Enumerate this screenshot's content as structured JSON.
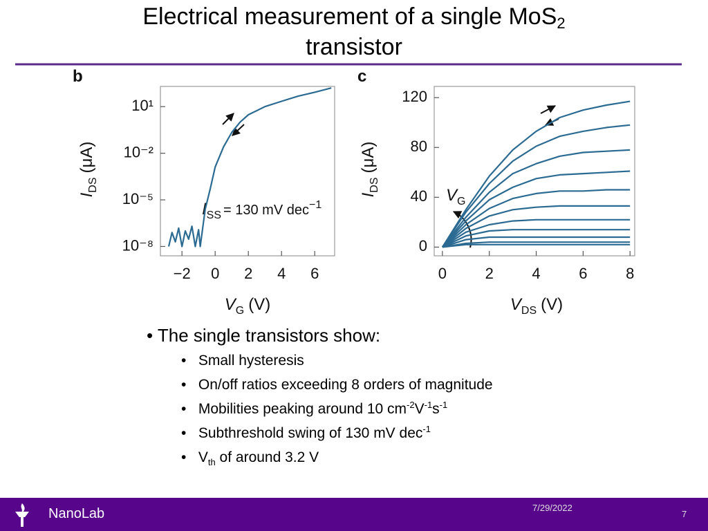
{
  "header": {
    "title": "Electrical measurement of a single MoS",
    "title_sub": "2",
    "title_line2": "transistor"
  },
  "chart_data": [
    {
      "type": "line",
      "panel_label": "b",
      "yscale": "log",
      "color": "#2b6a92",
      "y_label": {
        "main": "I",
        "sub": "DS",
        "unit": "(μA)"
      },
      "x_label": {
        "main": "V",
        "sub": "G",
        "unit": "(V)"
      },
      "annotation": {
        "main": "I",
        "sub": "SS",
        "text": "= 130 mV dec",
        "sup": "−1"
      },
      "xlim": [
        -3.3,
        7.2
      ],
      "xticks": [
        {
          "value": -2,
          "label": "−2"
        },
        0,
        2,
        4,
        6
      ],
      "ylim": [
        2.5e-09,
        200
      ],
      "yticks": [
        {
          "value": 10,
          "label": "10¹"
        },
        {
          "value": 0.01,
          "label": "10⁻²"
        },
        {
          "value": 1e-05,
          "label": "10⁻⁵"
        },
        {
          "value": 1e-08,
          "label": "10⁻⁸"
        }
      ],
      "x": [
        -2.8,
        -2.6,
        -2.4,
        -2.2,
        -2.0,
        -1.8,
        -1.6,
        -1.4,
        -1.2,
        -1.0,
        -0.9,
        -0.6,
        -0.3,
        0,
        0.5,
        1,
        1.5,
        2,
        3,
        4,
        5,
        6,
        7
      ],
      "series": [
        {
          "values": [
            1e-08,
            8e-08,
            2e-08,
            1.5e-07,
            1e-08,
            1e-07,
            3e-08,
            2e-07,
            1e-08,
            1.2e-07,
            1e-08,
            2.5e-06,
            5e-05,
            0.0013,
            0.025,
            0.22,
            1,
            3,
            10,
            22,
            47,
            85,
            160
          ]
        }
      ]
    },
    {
      "type": "line",
      "panel_label": "c",
      "color": "#2b6a92",
      "y_label": {
        "main": "I",
        "sub": "DS",
        "unit": "(μA)"
      },
      "x_label": {
        "main": "V",
        "sub": "DS",
        "unit": "(V)"
      },
      "annotation": {
        "main": "V",
        "sub": "G"
      },
      "xlim": [
        -0.35,
        8.2
      ],
      "xticks": [
        0,
        2,
        4,
        6,
        8
      ],
      "ylim": [
        -7,
        129
      ],
      "yticks": [
        0,
        40,
        80,
        120
      ],
      "x": [
        0,
        1,
        2,
        3,
        4,
        5,
        6,
        7,
        8
      ],
      "series": [
        {
          "values": [
            0,
            30,
            57,
            78,
            93,
            104,
            110,
            114,
            117
          ]
        },
        {
          "values": [
            0,
            28,
            51,
            69,
            81,
            89,
            93,
            96,
            98
          ]
        },
        {
          "values": [
            0,
            24,
            44,
            59,
            67,
            73,
            76,
            77,
            78
          ]
        },
        {
          "values": [
            0,
            21,
            38,
            48,
            55,
            58,
            59,
            60,
            61
          ]
        },
        {
          "values": [
            0,
            18,
            31,
            39,
            43,
            45,
            45,
            46,
            46
          ]
        },
        {
          "values": [
            0,
            15,
            25,
            30,
            32,
            33,
            33,
            33,
            33
          ]
        },
        {
          "values": [
            0,
            12,
            18,
            21,
            22,
            22,
            22,
            22,
            22
          ]
        },
        {
          "values": [
            0,
            9,
            13,
            14,
            14,
            14,
            14,
            14,
            14
          ]
        },
        {
          "values": [
            0,
            6,
            8,
            8,
            8,
            8,
            8,
            8,
            8
          ]
        },
        {
          "values": [
            0,
            3,
            4,
            4,
            4,
            4,
            4,
            4,
            4
          ]
        },
        {
          "values": [
            0,
            2,
            2,
            2,
            2,
            2,
            2,
            2,
            2
          ]
        }
      ]
    }
  ],
  "bullets": {
    "main": "The single transistors show:",
    "items": [
      [
        {
          "text": "Small hysteresis"
        }
      ],
      [
        {
          "text": "On/off ratios exceeding 8 orders of magnitude"
        }
      ],
      [
        {
          "text": "Mobilities peaking around 10 cm"
        },
        {
          "sup": "-2"
        },
        {
          "text": "V"
        },
        {
          "sup": "-1"
        },
        {
          "text": "s"
        },
        {
          "sup": "-1"
        }
      ],
      [
        {
          "text": "Subthreshold swing of 130 mV dec"
        },
        {
          "sup": "-1"
        }
      ],
      [
        {
          "text": "V"
        },
        {
          "sub": "th"
        },
        {
          "text": " of around 3.2 V"
        }
      ]
    ]
  },
  "footer": {
    "brand": "NanoLab",
    "date": "7/29/2022",
    "page": 7
  }
}
